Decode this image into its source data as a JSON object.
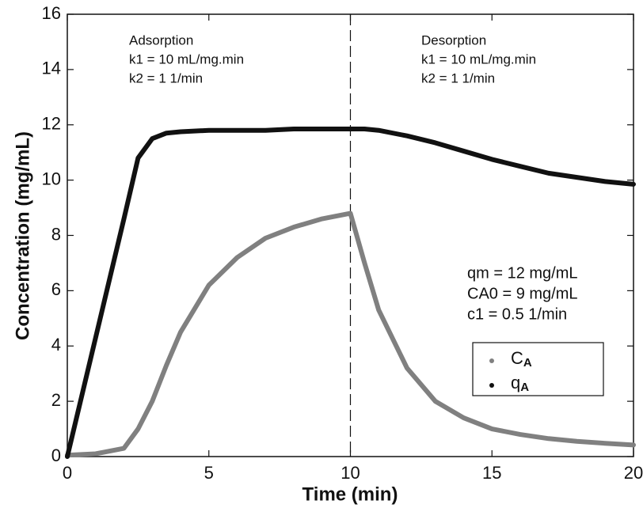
{
  "chart_data": {
    "type": "line",
    "xlabel": "Time (min)",
    "ylabel": "Concentration (mg/mL)",
    "x": [
      0,
      1,
      2,
      2.5,
      3,
      3.5,
      4,
      5,
      6,
      7,
      8,
      9,
      10,
      10.5,
      11,
      12,
      13,
      14,
      15,
      16,
      17,
      18,
      19,
      20
    ],
    "series": [
      {
        "name": "CA",
        "color": "#808080",
        "values": [
          0.05,
          0.1,
          0.3,
          1.0,
          2.0,
          3.3,
          4.5,
          6.2,
          7.2,
          7.9,
          8.3,
          8.6,
          8.8,
          7.0,
          5.3,
          3.2,
          2.0,
          1.4,
          1.0,
          0.8,
          0.65,
          0.55,
          0.48,
          0.42
        ]
      },
      {
        "name": "qA",
        "color": "#111111",
        "values": [
          0,
          4.3,
          8.6,
          10.8,
          11.5,
          11.7,
          11.75,
          11.8,
          11.8,
          11.8,
          11.85,
          11.85,
          11.85,
          11.85,
          11.8,
          11.6,
          11.35,
          11.05,
          10.75,
          10.5,
          10.25,
          10.1,
          9.95,
          9.85
        ]
      }
    ],
    "xlim": [
      0,
      20
    ],
    "xticks": [
      0,
      5,
      10,
      15,
      20
    ],
    "ylim": [
      0,
      16
    ],
    "yticks": [
      0,
      2,
      4,
      6,
      8,
      10,
      12,
      14,
      16
    ],
    "divider_x": 10,
    "annotations": [
      [
        "Adsorption",
        "k1 = 10 mL/mg.min",
        "k2 = 1 1/min"
      ],
      [
        "Desorption",
        "k1 = 10 mL/mg.min",
        "k2 = 1 1/min"
      ],
      [
        "qm = 12 mg/mL",
        "CA0 = 9 mg/mL",
        "c1  = 0.5 1/min"
      ]
    ]
  }
}
